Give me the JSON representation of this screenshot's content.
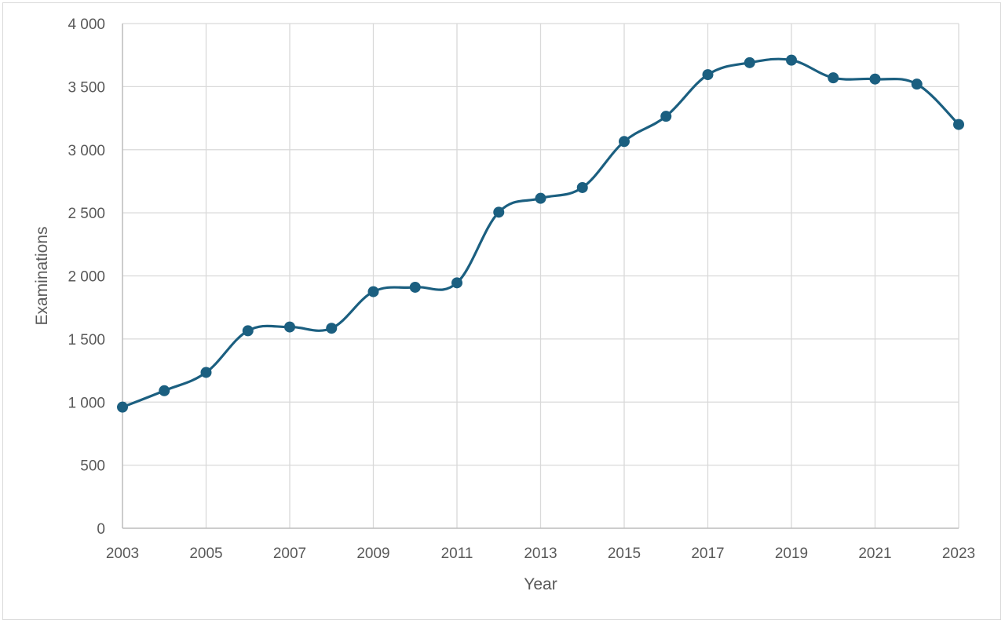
{
  "chart_data": {
    "type": "line",
    "smooth": true,
    "title": "",
    "xlabel": "Year",
    "ylabel": "Examinations",
    "xlim": [
      2003,
      2023
    ],
    "ylim": [
      0,
      4000
    ],
    "grid": true,
    "legend": "none",
    "colors": {
      "series": "#1b5f80",
      "grid": "#d9d9d9",
      "text": "#595959"
    },
    "x_ticks": [
      "2003",
      "2005",
      "2007",
      "2009",
      "2011",
      "2013",
      "2015",
      "2017",
      "2019",
      "2021",
      "2023"
    ],
    "y_ticks": [
      "0",
      "500",
      "1 000",
      "1 500",
      "2 000",
      "2 500",
      "3 000",
      "3 500",
      "4 000"
    ],
    "x": [
      2003,
      2004,
      2005,
      2006,
      2007,
      2008,
      2009,
      2010,
      2011,
      2012,
      2013,
      2014,
      2015,
      2016,
      2017,
      2018,
      2019,
      2020,
      2021,
      2022,
      2023
    ],
    "series": [
      {
        "values": [
          960,
          1090,
          1235,
          1565,
          1595,
          1585,
          1875,
          1910,
          1945,
          2505,
          2615,
          2700,
          3065,
          3265,
          3595,
          3690,
          3710,
          3570,
          3560,
          3520,
          3200
        ]
      }
    ]
  }
}
